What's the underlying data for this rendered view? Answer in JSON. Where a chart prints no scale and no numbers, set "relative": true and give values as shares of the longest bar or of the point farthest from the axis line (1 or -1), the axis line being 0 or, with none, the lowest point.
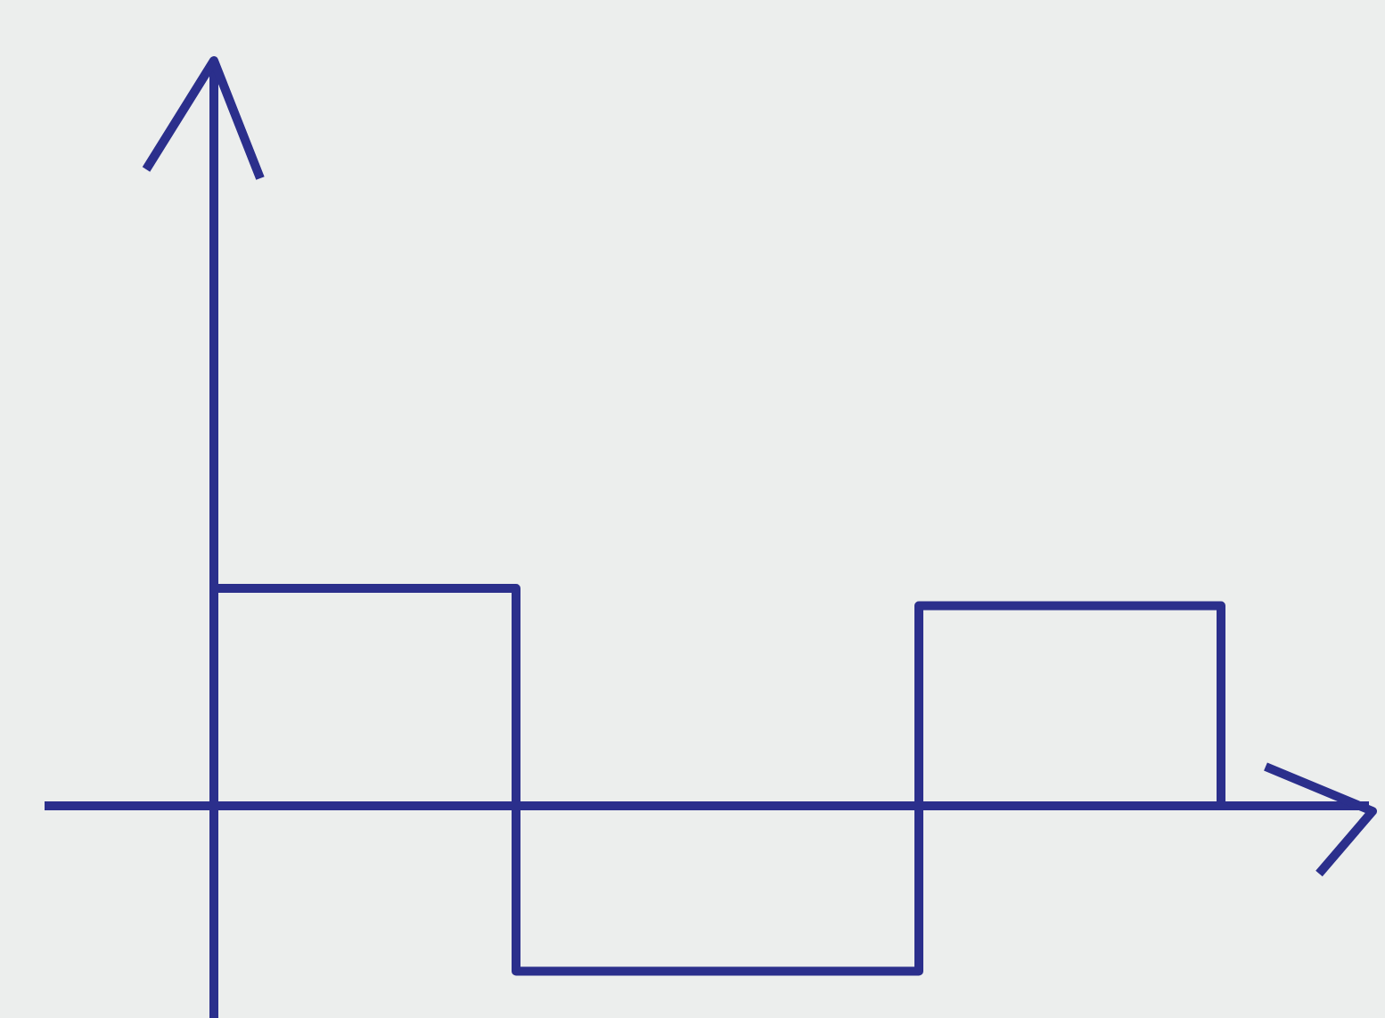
{
  "chart_data": {
    "type": "step",
    "relative": true,
    "categories": [
      null,
      null,
      null,
      null,
      null,
      null,
      null,
      null,
      null,
      null,
      null
    ],
    "values": [
      1,
      1,
      1,
      -0.76,
      -0.76,
      -0.76,
      -0.76,
      0.92,
      0.92,
      0.92,
      0
    ],
    "color": "#2b2f8c",
    "ref_lines": [
      {
        "axis": "y",
        "value": 0
      }
    ]
  }
}
